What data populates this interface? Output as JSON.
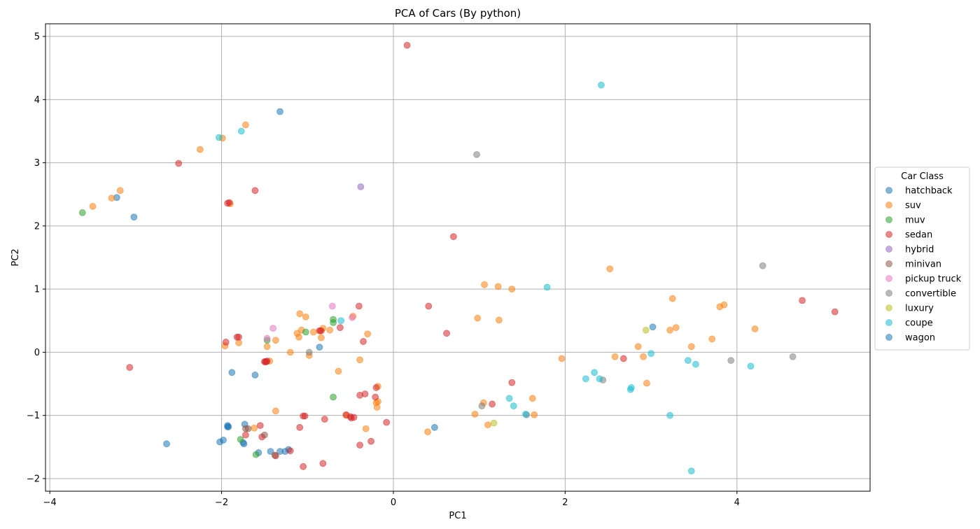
{
  "chart_data": {
    "type": "scatter",
    "title": "PCA of Cars (By python)",
    "xlabel": "PC1",
    "ylabel": "PC2",
    "xlim": [
      -4.05,
      5.55
    ],
    "ylim": [
      -2.2,
      5.2
    ],
    "xticks": [
      -4,
      -2,
      0,
      2,
      4
    ],
    "yticks": [
      -2,
      -1,
      0,
      1,
      2,
      3,
      4,
      5
    ],
    "grid": true,
    "legend_title": "Car Class",
    "legend_position": "right",
    "series": [
      {
        "name": "hatchback",
        "color": "#1f77b4",
        "points": [
          [
            -3.22,
            2.45
          ],
          [
            -3.02,
            2.14
          ],
          [
            -2.64,
            -1.45
          ],
          [
            -2.02,
            -1.42
          ],
          [
            -1.98,
            -1.39
          ],
          [
            -1.93,
            -1.18
          ],
          [
            -1.92,
            -1.18
          ],
          [
            -1.88,
            -0.32
          ],
          [
            -1.75,
            -1.43
          ],
          [
            -1.74,
            -1.45
          ],
          [
            -1.73,
            -1.14
          ],
          [
            -1.61,
            -0.36
          ],
          [
            -1.57,
            -1.59
          ],
          [
            -1.43,
            -1.57
          ],
          [
            -1.32,
            -1.57
          ],
          [
            -1.26,
            -1.57
          ],
          [
            -1.22,
            -1.54
          ],
          [
            -1.32,
            3.81
          ],
          [
            -0.86,
            0.08
          ],
          [
            0.48,
            -1.19
          ],
          [
            3.02,
            0.4
          ]
        ]
      },
      {
        "name": "suv",
        "color": "#ff7f0e",
        "points": [
          [
            -3.5,
            2.31
          ],
          [
            -3.28,
            2.44
          ],
          [
            -3.18,
            2.56
          ],
          [
            -2.25,
            3.21
          ],
          [
            -1.99,
            3.39
          ],
          [
            -1.72,
            3.6
          ],
          [
            -1.96,
            0.1
          ],
          [
            -1.8,
            0.15
          ],
          [
            -1.9,
            2.35
          ],
          [
            -1.62,
            -1.2
          ],
          [
            -1.47,
            0.09
          ],
          [
            -1.44,
            -0.14
          ],
          [
            -1.37,
            0.19
          ],
          [
            -1.37,
            -0.93
          ],
          [
            -1.2,
            0.0
          ],
          [
            -1.12,
            0.3
          ],
          [
            -1.1,
            0.24
          ],
          [
            -1.09,
            0.61
          ],
          [
            -1.07,
            0.35
          ],
          [
            -1.02,
            0.56
          ],
          [
            -0.98,
            -0.05
          ],
          [
            -0.93,
            0.32
          ],
          [
            -0.85,
            0.34
          ],
          [
            -0.84,
            0.23
          ],
          [
            -0.82,
            0.38
          ],
          [
            -0.74,
            0.35
          ],
          [
            -0.64,
            -0.3
          ],
          [
            -0.47,
            0.57
          ],
          [
            -0.39,
            -0.12
          ],
          [
            -0.32,
            -1.21
          ],
          [
            -0.3,
            0.29
          ],
          [
            -0.2,
            -0.8
          ],
          [
            -0.19,
            -0.87
          ],
          [
            -0.18,
            -0.54
          ],
          [
            -0.18,
            -0.78
          ],
          [
            -0.55,
            -1.0
          ],
          [
            0.4,
            -1.26
          ],
          [
            0.95,
            -0.98
          ],
          [
            0.98,
            0.54
          ],
          [
            1.05,
            -0.8
          ],
          [
            1.06,
            1.07
          ],
          [
            1.1,
            -1.15
          ],
          [
            1.22,
            1.04
          ],
          [
            1.23,
            0.51
          ],
          [
            1.38,
            1.0
          ],
          [
            1.62,
            -0.73
          ],
          [
            1.64,
            -0.99
          ],
          [
            1.96,
            -0.1
          ],
          [
            2.52,
            1.32
          ],
          [
            2.58,
            -0.07
          ],
          [
            2.85,
            0.09
          ],
          [
            2.91,
            -0.07
          ],
          [
            2.95,
            -0.49
          ],
          [
            3.22,
            0.35
          ],
          [
            3.25,
            0.85
          ],
          [
            3.29,
            0.39
          ],
          [
            3.47,
            0.09
          ],
          [
            3.71,
            0.21
          ],
          [
            3.8,
            0.72
          ],
          [
            3.85,
            0.75
          ],
          [
            4.21,
            0.37
          ]
        ]
      },
      {
        "name": "muv",
        "color": "#2ca02c",
        "points": [
          [
            -3.62,
            2.21
          ],
          [
            -1.78,
            -1.38
          ],
          [
            -1.47,
            0.19
          ],
          [
            -1.6,
            -1.62
          ],
          [
            -1.02,
            0.32
          ],
          [
            -0.7,
            0.52
          ],
          [
            -0.7,
            0.47
          ],
          [
            -0.7,
            -0.71
          ]
        ]
      },
      {
        "name": "sedan",
        "color": "#d62728",
        "points": [
          [
            -3.07,
            -0.24
          ],
          [
            -2.5,
            2.99
          ],
          [
            -1.93,
            2.36
          ],
          [
            -1.91,
            2.37
          ],
          [
            -1.61,
            2.56
          ],
          [
            -1.95,
            0.16
          ],
          [
            -1.82,
            0.24
          ],
          [
            -1.8,
            0.24
          ],
          [
            -1.72,
            -1.31
          ],
          [
            -1.55,
            -1.16
          ],
          [
            -1.53,
            -1.34
          ],
          [
            -1.5,
            -0.15
          ],
          [
            -1.49,
            -0.15
          ],
          [
            -1.48,
            -0.15
          ],
          [
            -1.47,
            -0.14
          ],
          [
            -1.37,
            -1.64
          ],
          [
            -1.2,
            -1.56
          ],
          [
            -1.09,
            -1.19
          ],
          [
            -1.05,
            -1.01
          ],
          [
            -1.03,
            -1.01
          ],
          [
            -1.05,
            -1.81
          ],
          [
            -0.86,
            0.34
          ],
          [
            -0.84,
            0.34
          ],
          [
            -0.82,
            -1.76
          ],
          [
            -0.8,
            -1.06
          ],
          [
            -0.62,
            0.39
          ],
          [
            -0.55,
            -0.99
          ],
          [
            -0.5,
            -1.02
          ],
          [
            -0.49,
            -1.04
          ],
          [
            -0.46,
            -1.03
          ],
          [
            -0.4,
            0.73
          ],
          [
            -0.39,
            -1.47
          ],
          [
            -0.39,
            -0.68
          ],
          [
            -0.35,
            0.17
          ],
          [
            -0.33,
            -0.66
          ],
          [
            -0.26,
            -1.41
          ],
          [
            -0.21,
            -0.71
          ],
          [
            -0.2,
            -0.56
          ],
          [
            -0.08,
            -1.11
          ],
          [
            0.16,
            4.86
          ],
          [
            0.41,
            0.73
          ],
          [
            0.62,
            0.3
          ],
          [
            0.7,
            1.83
          ],
          [
            1.15,
            -0.82
          ],
          [
            1.38,
            -0.48
          ],
          [
            2.68,
            -0.1
          ],
          [
            4.76,
            0.82
          ],
          [
            5.14,
            0.64
          ]
        ]
      },
      {
        "name": "hybrid",
        "color": "#9467bd",
        "points": [
          [
            -0.38,
            2.62
          ]
        ]
      },
      {
        "name": "minivan",
        "color": "#8c564b",
        "points": [
          [
            -1.72,
            -1.21
          ],
          [
            -1.69,
            -1.21
          ],
          [
            -1.5,
            -1.31
          ],
          [
            -1.38,
            -1.63
          ]
        ]
      },
      {
        "name": "pickup truck",
        "color": "#e377c2",
        "points": [
          [
            -1.47,
            0.22
          ],
          [
            -1.4,
            0.38
          ],
          [
            -0.71,
            0.73
          ],
          [
            -0.48,
            0.55
          ]
        ]
      },
      {
        "name": "convertible",
        "color": "#7f7f7f",
        "points": [
          [
            -0.98,
            0.0
          ],
          [
            0.97,
            3.13
          ],
          [
            1.03,
            -0.85
          ],
          [
            1.55,
            -0.99
          ],
          [
            2.44,
            -0.44
          ],
          [
            3.93,
            -0.13
          ],
          [
            4.3,
            1.37
          ],
          [
            4.65,
            -0.07
          ]
        ]
      },
      {
        "name": "luxury",
        "color": "#bcbd22",
        "points": [
          [
            1.17,
            -1.12
          ],
          [
            2.94,
            0.35
          ]
        ]
      },
      {
        "name": "coupe",
        "color": "#17becf",
        "points": [
          [
            -2.03,
            3.4
          ],
          [
            -1.77,
            3.5
          ],
          [
            -0.61,
            0.5
          ],
          [
            1.35,
            -0.73
          ],
          [
            1.4,
            -0.85
          ],
          [
            1.54,
            -0.98
          ],
          [
            1.79,
            1.03
          ],
          [
            2.24,
            -0.42
          ],
          [
            2.34,
            -0.32
          ],
          [
            2.4,
            -0.42
          ],
          [
            2.42,
            4.23
          ],
          [
            2.76,
            -0.59
          ],
          [
            2.77,
            -0.56
          ],
          [
            3.0,
            -0.02
          ],
          [
            3.22,
            -1.0
          ],
          [
            3.43,
            -0.13
          ],
          [
            3.47,
            -1.88
          ],
          [
            3.52,
            -0.19
          ],
          [
            4.16,
            -0.22
          ]
        ]
      },
      {
        "name": "wagon",
        "color": "#1f77b4",
        "points": [
          [
            -1.93,
            -1.16
          ]
        ]
      }
    ]
  }
}
